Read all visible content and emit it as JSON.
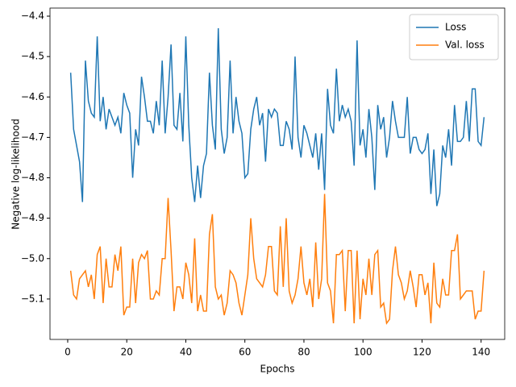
{
  "chart_data": {
    "type": "line",
    "xlabel": "Epochs",
    "ylabel": "Negative log-likelihood",
    "x": [
      1,
      2,
      3,
      4,
      5,
      6,
      7,
      8,
      9,
      10,
      11,
      12,
      13,
      14,
      15,
      16,
      17,
      18,
      19,
      20,
      21,
      22,
      23,
      24,
      25,
      26,
      27,
      28,
      29,
      30,
      31,
      32,
      33,
      34,
      35,
      36,
      37,
      38,
      39,
      40,
      41,
      42,
      43,
      44,
      45,
      46,
      47,
      48,
      49,
      50,
      51,
      52,
      53,
      54,
      55,
      56,
      57,
      58,
      59,
      60,
      61,
      62,
      63,
      64,
      65,
      66,
      67,
      68,
      69,
      70,
      71,
      72,
      73,
      74,
      75,
      76,
      77,
      78,
      79,
      80,
      81,
      82,
      83,
      84,
      85,
      86,
      87,
      88,
      89,
      90,
      91,
      92,
      93,
      94,
      95,
      96,
      97,
      98,
      99,
      100,
      101,
      102,
      103,
      104,
      105,
      106,
      107,
      108,
      109,
      110,
      111,
      112,
      113,
      114,
      115,
      116,
      117,
      118,
      119,
      120,
      121,
      122,
      123,
      124,
      125,
      126,
      127,
      128,
      129,
      130,
      131,
      132,
      133,
      134,
      135,
      136,
      137,
      138,
      139,
      140,
      141
    ],
    "series": [
      {
        "name": "Loss",
        "color": "#1f77b4",
        "values": [
          -4.54,
          -4.68,
          -4.72,
          -4.76,
          -4.86,
          -4.51,
          -4.61,
          -4.64,
          -4.65,
          -4.45,
          -4.66,
          -4.6,
          -4.68,
          -4.63,
          -4.65,
          -4.67,
          -4.65,
          -4.69,
          -4.59,
          -4.62,
          -4.64,
          -4.8,
          -4.68,
          -4.72,
          -4.55,
          -4.6,
          -4.66,
          -4.66,
          -4.69,
          -4.61,
          -4.67,
          -4.51,
          -4.69,
          -4.6,
          -4.47,
          -4.67,
          -4.68,
          -4.59,
          -4.71,
          -4.45,
          -4.67,
          -4.8,
          -4.86,
          -4.77,
          -4.85,
          -4.77,
          -4.74,
          -4.54,
          -4.67,
          -4.73,
          -4.43,
          -4.68,
          -4.74,
          -4.7,
          -4.51,
          -4.69,
          -4.6,
          -4.66,
          -4.69,
          -4.8,
          -4.79,
          -4.68,
          -4.63,
          -4.6,
          -4.67,
          -4.64,
          -4.76,
          -4.63,
          -4.65,
          -4.63,
          -4.64,
          -4.72,
          -4.72,
          -4.66,
          -4.68,
          -4.73,
          -4.5,
          -4.7,
          -4.75,
          -4.67,
          -4.69,
          -4.72,
          -4.75,
          -4.69,
          -4.78,
          -4.69,
          -4.83,
          -4.58,
          -4.67,
          -4.69,
          -4.53,
          -4.66,
          -4.62,
          -4.65,
          -4.63,
          -4.66,
          -4.77,
          -4.46,
          -4.72,
          -4.68,
          -4.75,
          -4.63,
          -4.7,
          -4.83,
          -4.62,
          -4.68,
          -4.65,
          -4.75,
          -4.7,
          -4.61,
          -4.66,
          -4.7,
          -4.7,
          -4.7,
          -4.6,
          -4.74,
          -4.7,
          -4.7,
          -4.73,
          -4.74,
          -4.73,
          -4.69,
          -4.84,
          -4.73,
          -4.87,
          -4.84,
          -4.72,
          -4.75,
          -4.68,
          -4.77,
          -4.62,
          -4.71,
          -4.71,
          -4.7,
          -4.61,
          -4.71,
          -4.58,
          -4.58,
          -4.71,
          -4.72,
          -4.65
        ]
      },
      {
        "name": "Val. loss",
        "color": "#ff7f0e",
        "values": [
          -5.03,
          -5.09,
          -5.1,
          -5.05,
          -5.04,
          -5.03,
          -5.07,
          -5.04,
          -5.1,
          -4.99,
          -4.97,
          -5.11,
          -5.0,
          -5.07,
          -5.07,
          -4.99,
          -5.03,
          -4.97,
          -5.14,
          -5.12,
          -5.12,
          -5.0,
          -5.11,
          -5.01,
          -4.99,
          -5.0,
          -4.98,
          -5.1,
          -5.1,
          -5.08,
          -5.09,
          -5.0,
          -5.0,
          -4.85,
          -4.98,
          -5.13,
          -5.07,
          -5.07,
          -5.1,
          -5.01,
          -5.04,
          -5.11,
          -4.95,
          -5.13,
          -5.09,
          -5.13,
          -5.13,
          -4.94,
          -4.89,
          -5.07,
          -5.1,
          -5.09,
          -5.14,
          -5.11,
          -5.03,
          -5.04,
          -5.06,
          -5.11,
          -5.14,
          -5.09,
          -5.04,
          -4.9,
          -5.0,
          -5.05,
          -5.06,
          -5.07,
          -5.04,
          -4.97,
          -4.97,
          -5.08,
          -5.09,
          -4.92,
          -5.07,
          -4.9,
          -5.08,
          -5.11,
          -5.09,
          -5.05,
          -4.97,
          -5.06,
          -5.09,
          -5.05,
          -5.12,
          -4.96,
          -5.1,
          -5.05,
          -4.84,
          -5.06,
          -5.08,
          -5.16,
          -4.99,
          -4.99,
          -4.98,
          -5.13,
          -4.98,
          -4.98,
          -5.16,
          -4.98,
          -5.15,
          -5.05,
          -5.09,
          -5.0,
          -5.09,
          -4.99,
          -4.98,
          -5.12,
          -5.11,
          -5.16,
          -5.15,
          -5.03,
          -4.97,
          -5.04,
          -5.06,
          -5.1,
          -5.08,
          -5.03,
          -5.07,
          -5.12,
          -5.04,
          -5.04,
          -5.09,
          -5.06,
          -5.16,
          -5.01,
          -5.11,
          -5.12,
          -5.05,
          -5.09,
          -5.09,
          -4.98,
          -4.98,
          -4.94,
          -5.1,
          -5.09,
          -5.08,
          -5.08,
          -5.08,
          -5.15,
          -5.13,
          -5.13,
          -5.03
        ]
      }
    ],
    "xlim": [
      -6,
      148
    ],
    "xticks": [
      0,
      20,
      40,
      60,
      80,
      100,
      120,
      140
    ],
    "ylim": [
      -5.2,
      -4.38
    ],
    "yticks": [
      {
        "value": -5.1,
        "label": "−5.1"
      },
      {
        "value": -5.0,
        "label": "−5.0"
      },
      {
        "value": -4.9,
        "label": "−4.9"
      },
      {
        "value": -4.8,
        "label": "−4.8"
      },
      {
        "value": -4.7,
        "label": "−4.7"
      },
      {
        "value": -4.6,
        "label": "−4.6"
      },
      {
        "value": -4.5,
        "label": "−4.5"
      },
      {
        "value": -4.4,
        "label": "−4.4"
      }
    ],
    "legend": "upper right"
  }
}
